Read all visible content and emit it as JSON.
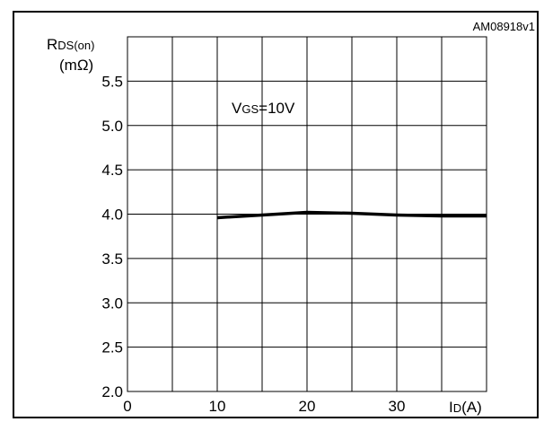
{
  "chart_data": {
    "type": "line",
    "figure_id": "AM08918v1",
    "ylabel_symbol": "R",
    "ylabel_subscript": "DS(on)",
    "ylabel_unit": "(mΩ)",
    "xlabel_symbol": "I",
    "xlabel_subscript": "D",
    "xlabel_unit": "(A)",
    "annotation_main": "V",
    "annotation_subscript": "GS",
    "annotation_value": "=10V",
    "xlim": [
      0,
      40
    ],
    "ylim": [
      2.0,
      6.0
    ],
    "x_ticks": [
      0,
      10,
      20,
      30
    ],
    "x_tick_labels": [
      "0",
      "10",
      "20",
      "30"
    ],
    "y_ticks": [
      2.0,
      2.5,
      3.0,
      3.5,
      4.0,
      4.5,
      5.0,
      5.5
    ],
    "y_tick_labels": [
      "2.0",
      "2.5",
      "3.0",
      "3.5",
      "4.0",
      "4.5",
      "5.0",
      "5.5"
    ],
    "grid": true,
    "series": [
      {
        "x": [
          10,
          15,
          20,
          25,
          30,
          35,
          40
        ],
        "y": [
          3.96,
          3.99,
          4.02,
          4.01,
          3.99,
          3.98,
          3.98
        ]
      }
    ]
  }
}
